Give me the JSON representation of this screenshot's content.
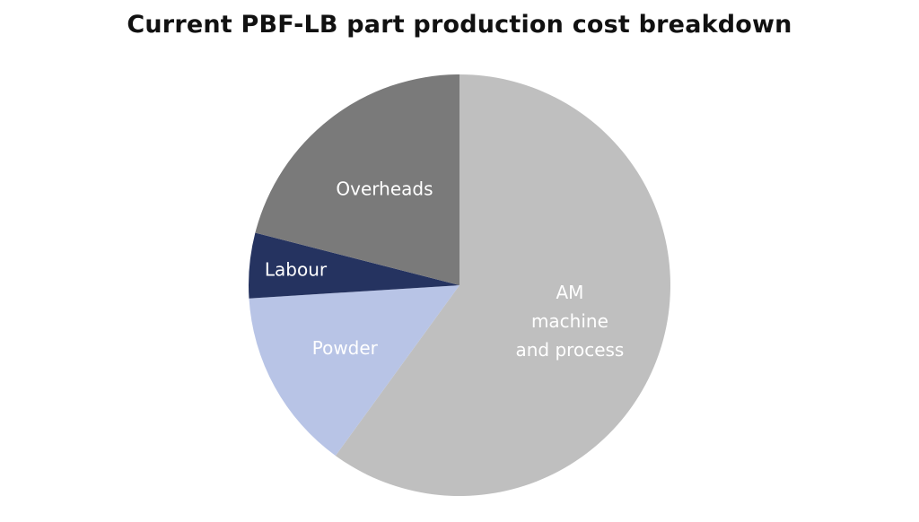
{
  "chart_data": {
    "type": "pie",
    "title": "Current PBF-LB part production cost breakdown",
    "slices": [
      {
        "label": [
          "AM",
          "machine",
          "and process"
        ],
        "value": 60,
        "color": "#bfbfbf"
      },
      {
        "label": [
          "Powder"
        ],
        "value": 14,
        "color": "#b8c4e6"
      },
      {
        "label": [
          "Labour"
        ],
        "value": 5,
        "color": "#253360"
      },
      {
        "label": [
          "Overheads"
        ],
        "value": 21,
        "color": "#7a7a7a"
      }
    ],
    "start": "12 o'clock",
    "direction": "clockwise",
    "legend": "none"
  }
}
